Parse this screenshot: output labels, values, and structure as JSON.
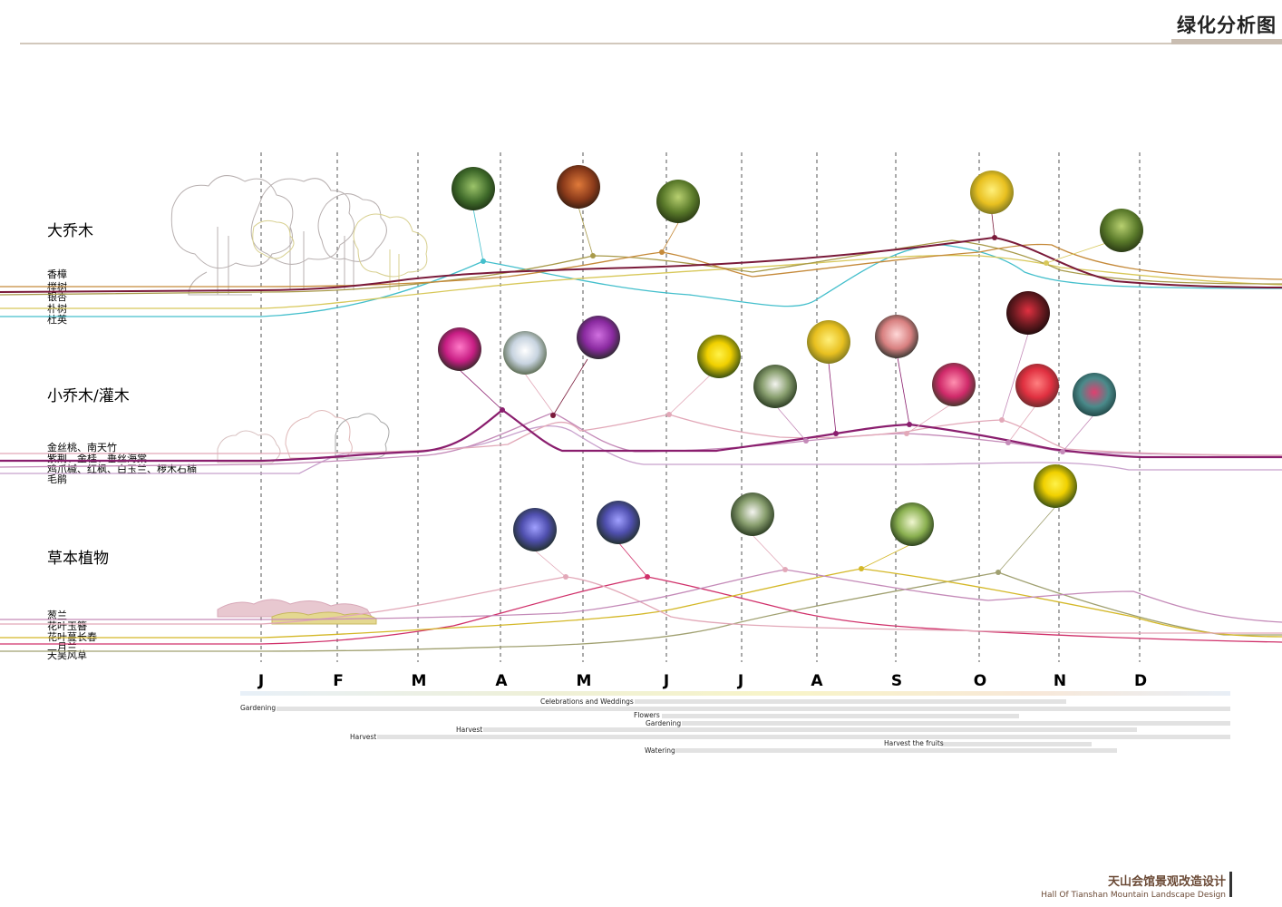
{
  "title": "绿化分析图",
  "footer": {
    "title_cn": "天山会馆景观改造设计",
    "title_en": "Hall Of Tianshan Mountain Landscape Design"
  },
  "months": [
    "J",
    "F",
    "M",
    "A",
    "M",
    "J",
    "J",
    "A",
    "S",
    "O",
    "N",
    "D"
  ],
  "categories": [
    {
      "name": "大乔木",
      "species": [
        "香樟",
        "榉树",
        "银杏",
        "朴树",
        "杜英"
      ]
    },
    {
      "name": "小乔木/灌木",
      "species": [
        "金丝桃、南天竹",
        "紫荆、金桂、垂丝海棠",
        "鸡爪槭、红枫、白玉兰、椤木石楠",
        "毛鹃"
      ]
    },
    {
      "name": "草本植物",
      "species": [
        "葱兰",
        "花叶玉簪",
        "花叶蔓长春",
        "二月兰",
        "天吴风草"
      ]
    }
  ],
  "activities": [
    "Celebrations and Weddings",
    "Gardening",
    "Flowers",
    "Gardening",
    "Harvest",
    "Harvest",
    "Harvest the fruits",
    "Watering"
  ],
  "colors": {
    "teal": "#44bfcc",
    "olive": "#a89a4a",
    "brown_orange": "#c58a3a",
    "maroon": "#7a1a3a",
    "yellow": "#d8c85a",
    "purple": "#8a1e6e",
    "pink": "#e2a8b8",
    "mauve": "#c48ab8",
    "lilac": "#c8a0cc",
    "magenta": "#d0306a",
    "gold": "#d4b828",
    "sage": "#a0a070"
  }
}
